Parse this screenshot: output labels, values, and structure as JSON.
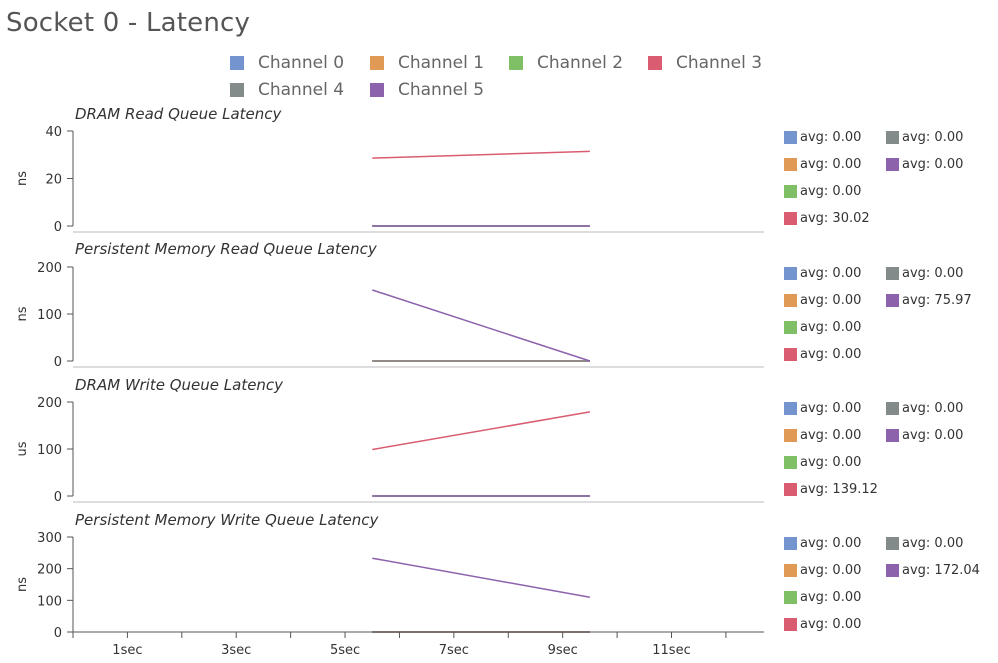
{
  "page": {
    "title": "Socket 0 - Latency"
  },
  "colors": {
    "Channel 0": "#7394cf",
    "Channel 1": "#e19a55",
    "Channel 2": "#7fbf66",
    "Channel 3": "#d95c70",
    "Channel 4": "#838a8a",
    "Channel 5": "#8c62ad"
  },
  "legend": [
    "Channel 0",
    "Channel 1",
    "Channel 2",
    "Channel 3",
    "Channel 4",
    "Channel 5"
  ],
  "chart_data": [
    {
      "type": "line",
      "title": "DRAM Read Queue Latency",
      "ylabel": "ns",
      "ylim": [
        0,
        40
      ],
      "yticks": [
        0,
        20,
        40
      ],
      "x": [
        5.5,
        9.5
      ],
      "series": [
        {
          "name": "Channel 0",
          "values": [
            0,
            0
          ],
          "avg": "avg: 0.00"
        },
        {
          "name": "Channel 1",
          "values": [
            0,
            0
          ],
          "avg": "avg: 0.00"
        },
        {
          "name": "Channel 2",
          "values": [
            0,
            0
          ],
          "avg": "avg: 0.00"
        },
        {
          "name": "Channel 3",
          "values": [
            28.6,
            31.4
          ],
          "avg": "avg: 30.02"
        },
        {
          "name": "Channel 4",
          "values": [
            0,
            0
          ],
          "avg": "avg: 0.00"
        },
        {
          "name": "Channel 5",
          "values": [
            0,
            0
          ],
          "avg": "avg: 0.00"
        }
      ]
    },
    {
      "type": "line",
      "title": "Persistent Memory Read Queue Latency",
      "ylabel": "ns",
      "ylim": [
        0,
        200
      ],
      "yticks": [
        0,
        100,
        200
      ],
      "x": [
        5.5,
        9.5
      ],
      "series": [
        {
          "name": "Channel 0",
          "values": [
            0,
            0
          ],
          "avg": "avg: 0.00"
        },
        {
          "name": "Channel 1",
          "values": [
            0,
            0
          ],
          "avg": "avg: 0.00"
        },
        {
          "name": "Channel 2",
          "values": [
            0,
            0
          ],
          "avg": "avg: 0.00"
        },
        {
          "name": "Channel 3",
          "values": [
            0,
            0
          ],
          "avg": "avg: 0.00"
        },
        {
          "name": "Channel 4",
          "values": [
            0,
            0
          ],
          "avg": "avg: 0.00"
        },
        {
          "name": "Channel 5",
          "values": [
            151,
            0
          ],
          "avg": "avg: 75.97"
        }
      ]
    },
    {
      "type": "line",
      "title": "DRAM Write Queue Latency",
      "ylabel": "us",
      "ylim": [
        0,
        200
      ],
      "yticks": [
        0,
        100,
        200
      ],
      "x": [
        5.5,
        9.5
      ],
      "series": [
        {
          "name": "Channel 0",
          "values": [
            0,
            0
          ],
          "avg": "avg: 0.00"
        },
        {
          "name": "Channel 1",
          "values": [
            0,
            0
          ],
          "avg": "avg: 0.00"
        },
        {
          "name": "Channel 2",
          "values": [
            0,
            0
          ],
          "avg": "avg: 0.00"
        },
        {
          "name": "Channel 3",
          "values": [
            99,
            179
          ],
          "avg": "avg: 139.12"
        },
        {
          "name": "Channel 4",
          "values": [
            0,
            0
          ],
          "avg": "avg: 0.00"
        },
        {
          "name": "Channel 5",
          "values": [
            0,
            0
          ],
          "avg": "avg: 0.00"
        }
      ]
    },
    {
      "type": "line",
      "title": "Persistent Memory Write Queue Latency",
      "ylabel": "ns",
      "ylim": [
        0,
        300
      ],
      "yticks": [
        0,
        100,
        200,
        300
      ],
      "x": [
        5.5,
        9.5
      ],
      "series": [
        {
          "name": "Channel 0",
          "values": [
            0,
            0
          ],
          "avg": "avg: 0.00"
        },
        {
          "name": "Channel 1",
          "values": [
            0,
            0
          ],
          "avg": "avg: 0.00"
        },
        {
          "name": "Channel 2",
          "values": [
            0,
            0
          ],
          "avg": "avg: 0.00"
        },
        {
          "name": "Channel 3",
          "values": [
            0,
            0
          ],
          "avg": "avg: 0.00"
        },
        {
          "name": "Channel 4",
          "values": [
            0,
            0
          ],
          "avg": "avg: 0.00"
        },
        {
          "name": "Channel 5",
          "values": [
            233,
            110
          ],
          "avg": "avg: 172.04"
        }
      ]
    }
  ],
  "x_axis": {
    "xlim": [
      0,
      12.7
    ],
    "ticks": [
      0,
      1,
      2,
      3,
      4,
      5,
      6,
      7,
      8,
      9,
      10,
      11,
      12
    ],
    "tick_labels": [
      {
        "x": 1,
        "label": "1sec"
      },
      {
        "x": 3,
        "label": "3sec"
      },
      {
        "x": 5,
        "label": "5sec"
      },
      {
        "x": 7,
        "label": "7sec"
      },
      {
        "x": 9,
        "label": "9sec"
      },
      {
        "x": 11,
        "label": "11sec"
      }
    ]
  }
}
